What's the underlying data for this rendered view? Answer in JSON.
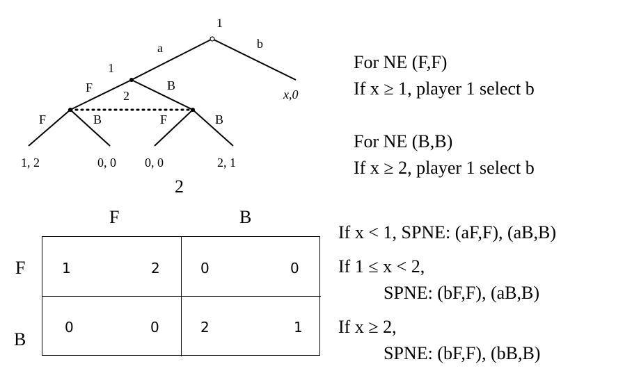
{
  "tree": {
    "root_player": "1",
    "edge_a": "a",
    "edge_b": "b",
    "payoff_b": "x,0",
    "node2_player_label": "1",
    "edge_F": "F",
    "edge_B": "B",
    "info_set_player": "2",
    "leaf_edges": [
      "F",
      "B",
      "F",
      "B"
    ],
    "leaf_payoffs": [
      "1, 2",
      "0, 0",
      "0, 0",
      "2, 1"
    ],
    "caption": "2"
  },
  "right_notes": {
    "ne1_title": "For NE  (F,F)",
    "ne1_cond": "If x ≥  1, player 1 select b",
    "ne2_title": "For NE  (B,B)",
    "ne2_cond": "If x ≥  2, player 1 select b"
  },
  "matrix": {
    "col_headers": [
      "F",
      "B"
    ],
    "row_headers": [
      "F",
      "B"
    ],
    "cells": [
      [
        [
          "1",
          "2"
        ],
        [
          "0",
          "0"
        ]
      ],
      [
        [
          "0",
          "0"
        ],
        [
          "2",
          "1"
        ]
      ]
    ]
  },
  "spne_notes": {
    "line1": "If x <  1, SPNE: (aF,F), (aB,B)",
    "line2": "If 1 ≤ x < 2,",
    "line3": "SPNE: (bF,F), (aB,B)",
    "line4": "If x ≥ 2,",
    "line5": "SPNE: (bF,F), (bB,B)"
  }
}
